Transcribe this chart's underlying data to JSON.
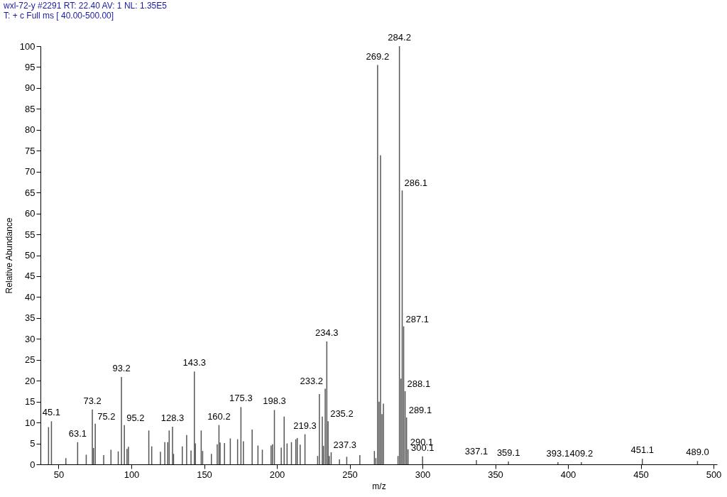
{
  "chart_data": {
    "type": "bar",
    "title": "wxl-72-y #2291   RT: 22.40   AV: 1   NL: 1.35E5",
    "subtitle": "T: + c Full ms [ 40.00-500.00]",
    "xlabel": "m/z",
    "ylabel": "Relative Abundance",
    "x": [
      43.1,
      45.1,
      55,
      63.1,
      69,
      73.2,
      74,
      75.2,
      81,
      86,
      91,
      93.2,
      95.2,
      97,
      98,
      112,
      114,
      120,
      123,
      125,
      126,
      128.3,
      129,
      135,
      138,
      141,
      143.3,
      144,
      148,
      149,
      155,
      159,
      160.2,
      161,
      164,
      168,
      173,
      175.3,
      177,
      183,
      187,
      190,
      196,
      197,
      198.3,
      203,
      205,
      207,
      210,
      213,
      214,
      216,
      219.3,
      228,
      229.2,
      231.2,
      232,
      233.2,
      234.3,
      235.2,
      236,
      237.3,
      243,
      248,
      257,
      267,
      268,
      269.2,
      270.2,
      271.2,
      272.2,
      273.2,
      283.2,
      284.2,
      285.2,
      286.1,
      287.1,
      288.1,
      289.1,
      290.1,
      300.1,
      337.1,
      359.1,
      393.1,
      409.2,
      451.1,
      489.0
    ],
    "values": [
      8.9,
      10.3,
      1.5,
      5.3,
      2.3,
      13.1,
      3.9,
      9.7,
      2.2,
      3.5,
      3.1,
      20.9,
      9.4,
      3.7,
      4.2,
      8.1,
      4.3,
      3.0,
      5.3,
      5.3,
      8.1,
      9.0,
      2.5,
      4.3,
      7.0,
      3.3,
      22.2,
      5.0,
      8.1,
      3.2,
      2.5,
      4.8,
      9.4,
      5.2,
      5.1,
      6.2,
      6.0,
      13.7,
      5.5,
      8.3,
      4.5,
      3.5,
      4.5,
      4.8,
      13.0,
      4.0,
      11.4,
      5.0,
      5.3,
      6.0,
      6.3,
      4.7,
      7.2,
      2.0,
      16.8,
      11.4,
      4.4,
      18.1,
      29.4,
      10.3,
      2.0,
      2.9,
      1.2,
      1.8,
      2.2,
      3.2,
      1.5,
      95.5,
      15.0,
      73.9,
      12.0,
      14.5,
      2.0,
      100,
      20.5,
      65.5,
      33,
      17.5,
      11.2,
      3.6,
      1.9,
      1.0,
      0.7,
      0.5,
      0.5,
      1.3,
      0.8
    ],
    "annotations": [
      {
        "text": "45.1",
        "x": 45.1,
        "y": 10.3
      },
      {
        "text": "63.1",
        "x": 63.1,
        "y": 5.3
      },
      {
        "text": "73.2",
        "x": 73.2,
        "y": 13.1
      },
      {
        "text": "75.2",
        "x": 75.2,
        "y": 9.7
      },
      {
        "text": "93.2",
        "x": 93.2,
        "y": 20.9
      },
      {
        "text": "95.2",
        "x": 95.2,
        "y": 9.4
      },
      {
        "text": "128.3",
        "x": 128.3,
        "y": 9.0
      },
      {
        "text": "143.3",
        "x": 143.3,
        "y": 22.2
      },
      {
        "text": "160.2",
        "x": 160.2,
        "y": 9.4
      },
      {
        "text": "175.3",
        "x": 175.3,
        "y": 13.7
      },
      {
        "text": "198.3",
        "x": 198.3,
        "y": 13.0
      },
      {
        "text": "219.3",
        "x": 219.3,
        "y": 7.2
      },
      {
        "text": "233.2",
        "x": 233.2,
        "y": 18.1
      },
      {
        "text": "234.3",
        "x": 234.3,
        "y": 29.4
      },
      {
        "text": "235.2",
        "x": 235.2,
        "y": 10.3
      },
      {
        "text": "237.3",
        "x": 237.3,
        "y": 2.9
      },
      {
        "text": "269.2",
        "x": 269.2,
        "y": 95.5
      },
      {
        "text": "284.2",
        "x": 284.2,
        "y": 100
      },
      {
        "text": "286.1",
        "x": 286.1,
        "y": 65.5
      },
      {
        "text": "287.1",
        "x": 287.1,
        "y": 33
      },
      {
        "text": "288.1",
        "x": 288.1,
        "y": 17.5
      },
      {
        "text": "289.1",
        "x": 289.1,
        "y": 11.2
      },
      {
        "text": "290.1",
        "x": 290.1,
        "y": 3.6
      },
      {
        "text": "300.1",
        "x": 300.1,
        "y": 1.9
      },
      {
        "text": "337.1",
        "x": 337.1,
        "y": 1.0
      },
      {
        "text": "359.1",
        "x": 359.1,
        "y": 0.7
      },
      {
        "text": "393.1",
        "x": 393.1,
        "y": 0.5
      },
      {
        "text": "409.2",
        "x": 409.2,
        "y": 0.5
      },
      {
        "text": "451.1",
        "x": 451.1,
        "y": 1.3
      },
      {
        "text": "489.0",
        "x": 489.0,
        "y": 0.8
      }
    ],
    "color": "#555555",
    "xlim": [
      40,
      500
    ],
    "ylim": [
      0,
      100
    ],
    "xticks": [
      50,
      100,
      150,
      200,
      250,
      300,
      350,
      400,
      450,
      500
    ],
    "yticks": [
      0,
      5,
      10,
      15,
      20,
      25,
      30,
      35,
      40,
      45,
      50,
      55,
      60,
      65,
      70,
      75,
      80,
      85,
      90,
      95,
      100
    ],
    "grid": false
  }
}
